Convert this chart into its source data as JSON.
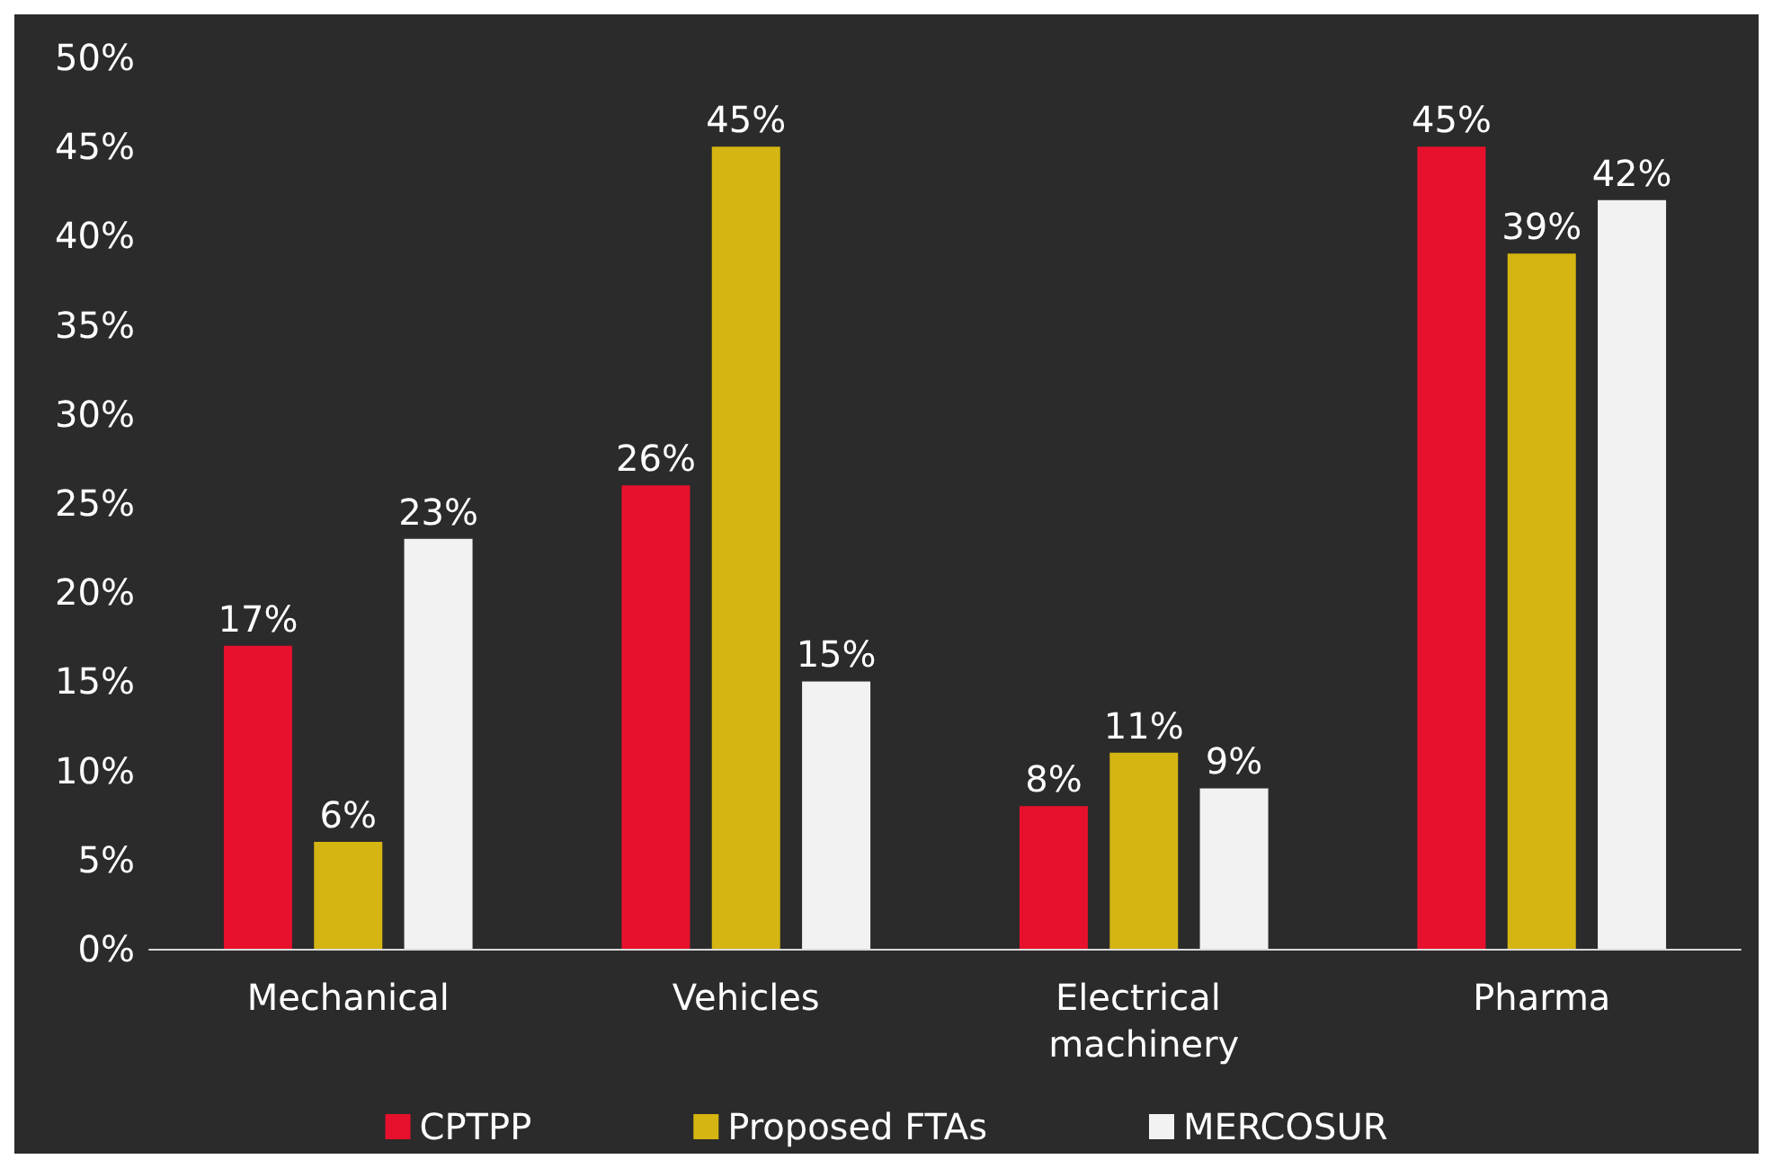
{
  "chart_data": {
    "type": "bar",
    "categories": [
      "Mechanical",
      "Vehicles",
      "Electrical machinery",
      "Pharma"
    ],
    "series": [
      {
        "name": "CPTPP",
        "color": "#e8112d",
        "values": [
          17,
          26,
          8,
          45
        ],
        "value_labels": [
          "17%",
          "26%",
          "8%",
          "45%"
        ]
      },
      {
        "name": "Proposed FTAs",
        "color": "#d4b511",
        "values": [
          6,
          45,
          11,
          39
        ],
        "value_labels": [
          "6%",
          "45%",
          "11%",
          "39%"
        ]
      },
      {
        "name": "MERCOSUR",
        "color": "#f2f2f2",
        "values": [
          23,
          15,
          9,
          42
        ],
        "value_labels": [
          "23%",
          "15%",
          "9%",
          "42%"
        ]
      }
    ],
    "ylim": [
      0,
      50
    ],
    "yticks": [
      {
        "value": 0,
        "label": "0%"
      },
      {
        "value": 5,
        "label": "5%"
      },
      {
        "value": 10,
        "label": "10%"
      },
      {
        "value": 15,
        "label": "15%"
      },
      {
        "value": 20,
        "label": "20%"
      },
      {
        "value": 25,
        "label": "25%"
      },
      {
        "value": 30,
        "label": "30%"
      },
      {
        "value": 35,
        "label": "35%"
      },
      {
        "value": 40,
        "label": "40%"
      },
      {
        "value": 45,
        "label": "45%"
      },
      {
        "value": 50,
        "label": "50%"
      }
    ],
    "grid": false,
    "legend": "bottom"
  }
}
